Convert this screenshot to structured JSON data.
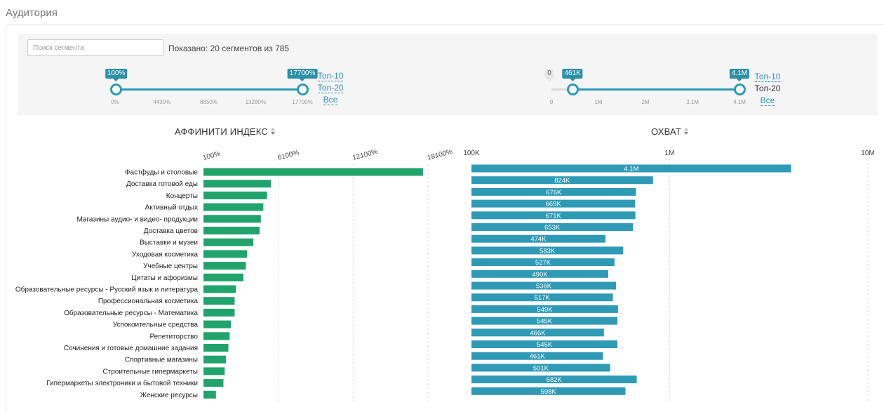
{
  "page": {
    "title": "Аудитория"
  },
  "filters": {
    "search_placeholder": "Поиск сегмента",
    "shown_text": "Показано: 20 сегментов из 785",
    "affinity_slider": {
      "min_label": "100%",
      "max_label": "17700%",
      "ticks": [
        "0%",
        "4430%",
        "8850%",
        "13280%",
        "17700%"
      ],
      "range_min": 0,
      "range_max": 17700,
      "value_low": 100,
      "value_high": 17700
    },
    "reach_slider": {
      "zero_label": "0",
      "min_label": "461K",
      "max_label": "4.1M",
      "ticks": [
        "0",
        "1M",
        "2M",
        "3.1M",
        "4.1M"
      ],
      "range_min": 0,
      "range_max": 4.1,
      "value_low": 0.461,
      "value_high": 4.1
    },
    "affinity_links": [
      {
        "label": "Топ-10",
        "active": false
      },
      {
        "label": "Топ-20",
        "active": false
      },
      {
        "label": "Все",
        "active": false
      }
    ],
    "reach_links": [
      {
        "label": "Топ-10",
        "active": false
      },
      {
        "label": "Топ-20",
        "active": true
      },
      {
        "label": "Все",
        "active": false
      }
    ]
  },
  "columns": {
    "affinity": "АФФИНИТИ ИНДЕКС",
    "reach": "ОХВАТ"
  },
  "colors": {
    "affinity_bar": "#21a36c",
    "reach_bar": "#2e9ab5",
    "accent": "#2e8fa8",
    "link": "#2e8fbc"
  },
  "icons": {
    "sort": "sort-icon"
  },
  "chart_data": [
    {
      "type": "bar",
      "orientation": "horizontal",
      "title": "АФФИНИТИ ИНДЕКС",
      "categories": [
        "Фастфуды и столовые",
        "Доставка готовой еды",
        "Концерты",
        "Активный отдых",
        "Магазины аудио- и видео- продукции",
        "Доставка цветов",
        "Выставки и музеи",
        "Уходовая косметика",
        "Учебные центры",
        "Цитаты и афоризмы",
        "Образовательные ресурсы - Русский язык и литература",
        "Профессиональная косметика",
        "Образовательные ресурсы - Математика",
        "Успокоительные средства",
        "Репетиторство",
        "Сочинения и готовые домашние задания",
        "Спортивные магазины",
        "Строительные гипермаркеты",
        "Гипермаркеты электроники и бытовой техники",
        "Женские ресурсы"
      ],
      "values": [
        17700,
        5500,
        5200,
        4900,
        4700,
        4600,
        4100,
        3600,
        3500,
        3300,
        2700,
        2600,
        2600,
        2300,
        2200,
        2100,
        1900,
        1800,
        1700,
        1100
      ],
      "xlim": [
        100,
        18100
      ],
      "ticks": [
        "100%",
        "6100%",
        "12100%",
        "18100%"
      ],
      "grid": true
    },
    {
      "type": "bar",
      "orientation": "horizontal",
      "title": "ОХВАТ",
      "scale": "log",
      "values": [
        4100000.0,
        824000.0,
        676000.0,
        669000.0,
        671000.0,
        653000.0,
        474000.0,
        583000.0,
        527000.0,
        490000.0,
        536000.0,
        517000.0,
        549000.0,
        545000.0,
        466000.0,
        545000.0,
        461000.0,
        501000.0,
        682000.0,
        598000.0
      ],
      "value_labels": [
        "4.1M",
        "824K",
        "676K",
        "669K",
        "671K",
        "653K",
        "474K",
        "583K",
        "527K",
        "490K",
        "536K",
        "517K",
        "549K",
        "545K",
        "466K",
        "545K",
        "461K",
        "501K",
        "682K",
        "598K"
      ],
      "xlim": [
        100000,
        10000000
      ],
      "ticks": [
        "100K",
        "1M",
        "10M"
      ],
      "grid": true
    }
  ]
}
